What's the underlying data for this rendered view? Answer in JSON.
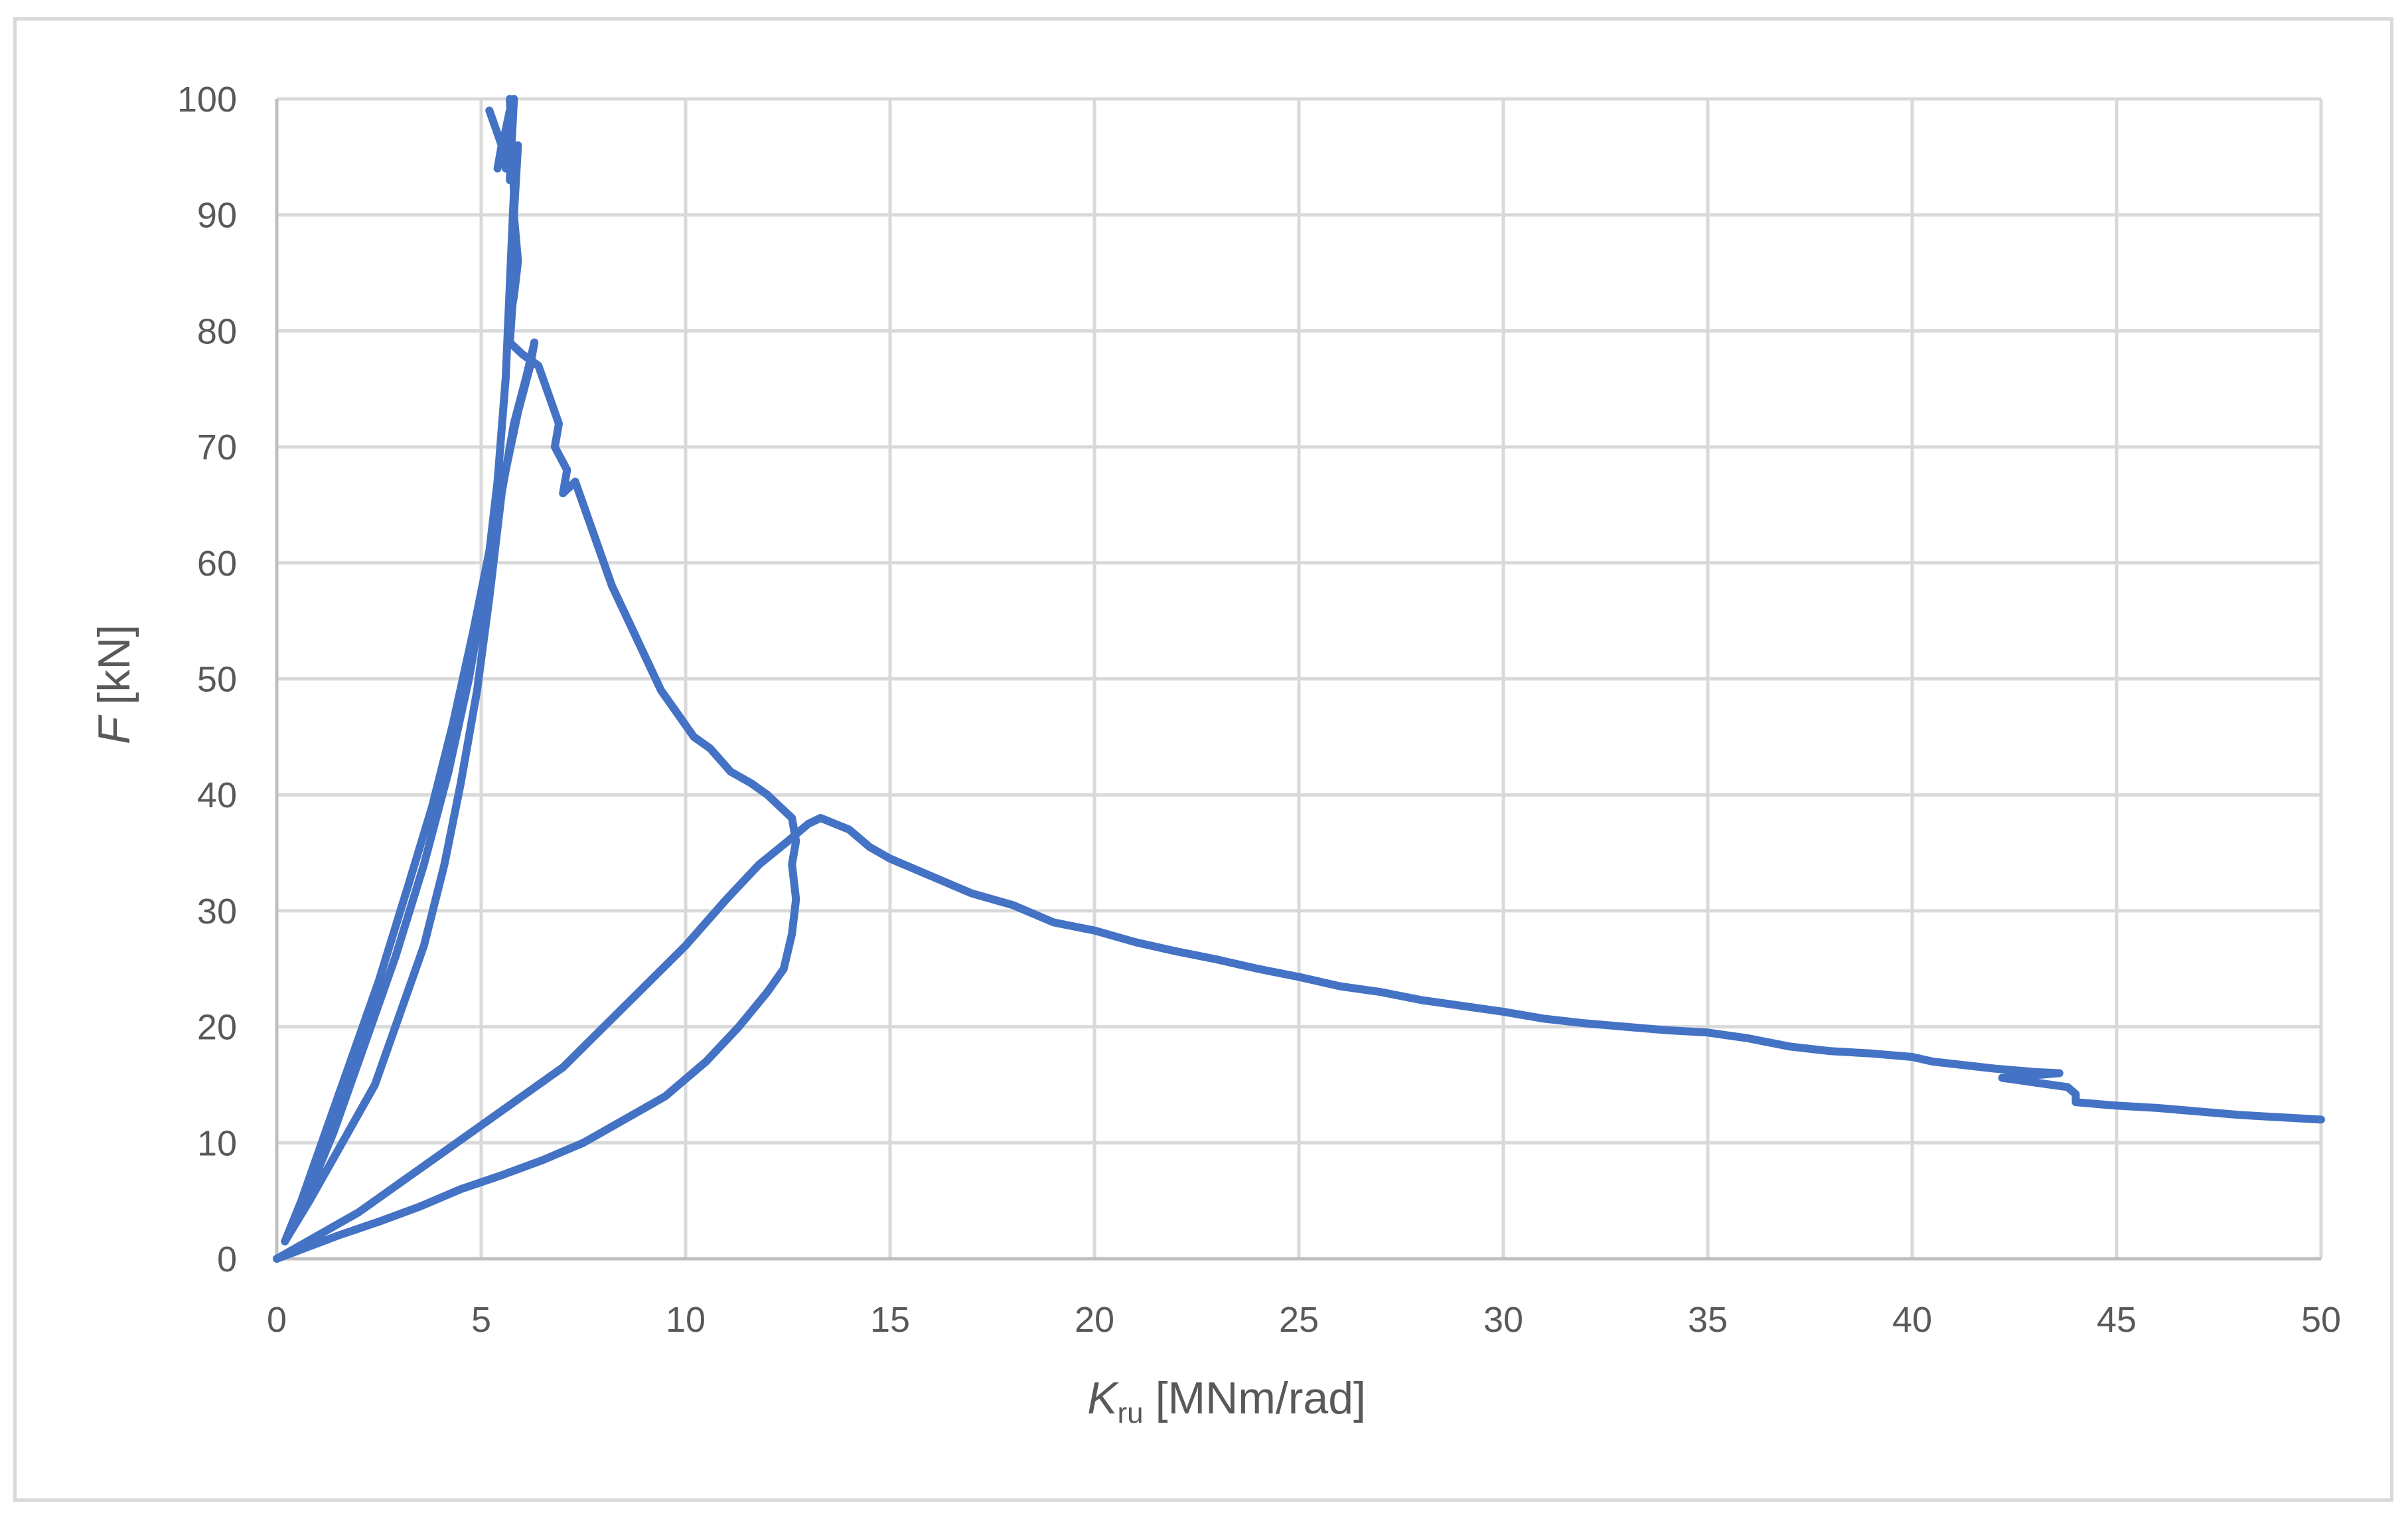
{
  "chart_data": {
    "type": "line",
    "title": "",
    "xlabel": {
      "main": "K",
      "sub": "ru",
      "unit": "[MNm/rad]"
    },
    "ylabel": {
      "main": "F",
      "unit": "[kN]"
    },
    "xlim": [
      0,
      50
    ],
    "ylim": [
      0,
      100
    ],
    "xticks": [
      0,
      5,
      10,
      15,
      20,
      25,
      30,
      35,
      40,
      45,
      50
    ],
    "yticks": [
      0,
      10,
      20,
      30,
      40,
      50,
      60,
      70,
      80,
      90,
      100
    ],
    "grid": true,
    "legend": "none",
    "colors": {
      "series": "#4472c4",
      "grid": "#d9d9d9",
      "axis": "#bfbfbf",
      "text": "#595959"
    },
    "series": [
      {
        "segment": "cycle-1-loading",
        "points": [
          [
            0.2,
            1.5
          ],
          [
            0.6,
            5
          ],
          [
            1.2,
            11
          ],
          [
            1.8,
            17
          ],
          [
            2.5,
            24
          ],
          [
            3.2,
            32
          ],
          [
            3.8,
            39
          ],
          [
            4.3,
            46
          ],
          [
            4.8,
            54
          ],
          [
            5.2,
            61
          ],
          [
            5.6,
            68
          ],
          [
            5.9,
            73
          ],
          [
            6.2,
            77
          ],
          [
            6.3,
            79
          ]
        ]
      },
      {
        "segment": "cycle-1-unloading",
        "points": [
          [
            6.3,
            79
          ],
          [
            6.1,
            76
          ],
          [
            5.8,
            72
          ],
          [
            5.5,
            66
          ],
          [
            5.2,
            57
          ],
          [
            4.9,
            49
          ],
          [
            4.5,
            41
          ],
          [
            4.1,
            34
          ],
          [
            3.6,
            27
          ],
          [
            3.0,
            21
          ],
          [
            2.4,
            15
          ],
          [
            1.6,
            10
          ],
          [
            0.8,
            5
          ],
          [
            0.2,
            1.5
          ]
        ]
      },
      {
        "segment": "cycle-2-loading",
        "points": [
          [
            0.2,
            1.5
          ],
          [
            0.7,
            5
          ],
          [
            1.4,
            11
          ],
          [
            2.1,
            18
          ],
          [
            2.9,
            26
          ],
          [
            3.6,
            34
          ],
          [
            4.2,
            42
          ],
          [
            4.7,
            50
          ],
          [
            5.1,
            58
          ],
          [
            5.4,
            67
          ],
          [
            5.6,
            76
          ],
          [
            5.7,
            84
          ],
          [
            5.8,
            92
          ],
          [
            5.7,
            100
          ]
        ]
      },
      {
        "segment": "cycle-2-upper-branch",
        "points": [
          [
            5.2,
            99
          ],
          [
            5.5,
            96
          ],
          [
            5.4,
            94
          ],
          [
            5.7,
            99
          ],
          [
            5.6,
            94
          ],
          [
            5.8,
            100
          ],
          [
            5.7,
            93
          ],
          [
            5.9,
            96
          ],
          [
            5.8,
            90
          ],
          [
            5.9,
            86
          ],
          [
            5.8,
            83
          ],
          [
            5.7,
            81
          ],
          [
            5.8,
            84
          ],
          [
            5.7,
            79
          ],
          [
            6.0,
            78
          ],
          [
            6.4,
            77
          ],
          [
            6.7,
            74
          ],
          [
            6.9,
            72
          ],
          [
            6.8,
            70
          ],
          [
            7.1,
            68
          ],
          [
            7.0,
            66
          ],
          [
            7.3,
            67
          ],
          [
            7.5,
            65
          ],
          [
            7.7,
            63
          ],
          [
            7.9,
            61
          ],
          [
            8.2,
            58
          ],
          [
            8.6,
            55
          ],
          [
            9.0,
            52
          ],
          [
            9.4,
            49
          ],
          [
            9.8,
            47
          ],
          [
            10.2,
            45
          ],
          [
            10.6,
            44
          ],
          [
            11.1,
            42
          ],
          [
            11.6,
            41
          ],
          [
            12.0,
            40
          ],
          [
            12.3,
            39
          ],
          [
            12.6,
            38
          ],
          [
            12.7,
            36
          ],
          [
            12.6,
            34
          ],
          [
            12.7,
            31
          ],
          [
            12.6,
            28
          ],
          [
            12.4,
            25
          ],
          [
            12.0,
            23
          ],
          [
            11.3,
            20
          ],
          [
            10.5,
            17
          ],
          [
            9.5,
            14
          ],
          [
            8.5,
            12
          ],
          [
            7.5,
            10
          ],
          [
            6.5,
            8.5
          ],
          [
            5.5,
            7.2
          ],
          [
            4.5,
            6
          ],
          [
            3.5,
            4.5
          ],
          [
            2.5,
            3.2
          ],
          [
            1.5,
            2
          ],
          [
            0,
            0
          ]
        ]
      },
      {
        "segment": "cycle-3-loading",
        "points": [
          [
            0,
            0
          ],
          [
            1,
            2
          ],
          [
            2,
            4
          ],
          [
            3,
            6.5
          ],
          [
            4,
            9
          ],
          [
            5,
            11.5
          ],
          [
            6,
            14
          ],
          [
            7,
            16.5
          ],
          [
            8,
            20
          ],
          [
            9,
            23.5
          ],
          [
            10,
            27
          ],
          [
            11,
            31
          ],
          [
            11.8,
            34
          ],
          [
            12.5,
            36
          ],
          [
            13.0,
            37.5
          ],
          [
            13.3,
            38
          ]
        ]
      },
      {
        "segment": "post-peak-softening",
        "points": [
          [
            13.3,
            38
          ],
          [
            14,
            37
          ],
          [
            14.5,
            35.5
          ],
          [
            15,
            34.5
          ],
          [
            16,
            33
          ],
          [
            17,
            31.5
          ],
          [
            18,
            30.5
          ],
          [
            19,
            29
          ],
          [
            20,
            28.3
          ],
          [
            21,
            27.3
          ],
          [
            22,
            26.5
          ],
          [
            23,
            25.8
          ],
          [
            24,
            25
          ],
          [
            25,
            24.3
          ],
          [
            26,
            23.5
          ],
          [
            27,
            23
          ],
          [
            28,
            22.3
          ],
          [
            29,
            21.8
          ],
          [
            30,
            21.3
          ],
          [
            31,
            20.7
          ],
          [
            32,
            20.3
          ],
          [
            33,
            20
          ],
          [
            34,
            19.7
          ],
          [
            35,
            19.5
          ],
          [
            36,
            19
          ],
          [
            37,
            18.3
          ],
          [
            38,
            17.9
          ],
          [
            39,
            17.7
          ],
          [
            40,
            17.4
          ],
          [
            40.5,
            17
          ],
          [
            41,
            16.8
          ],
          [
            42,
            16.4
          ],
          [
            43,
            16.1
          ],
          [
            43.6,
            16
          ],
          [
            42.2,
            15.6
          ],
          [
            43,
            15.2
          ],
          [
            43.8,
            14.8
          ],
          [
            44,
            14.2
          ],
          [
            44,
            13.5
          ],
          [
            45,
            13.2
          ],
          [
            46,
            13
          ],
          [
            47,
            12.7
          ],
          [
            48,
            12.4
          ],
          [
            49,
            12.2
          ],
          [
            50,
            12
          ]
        ]
      }
    ]
  }
}
